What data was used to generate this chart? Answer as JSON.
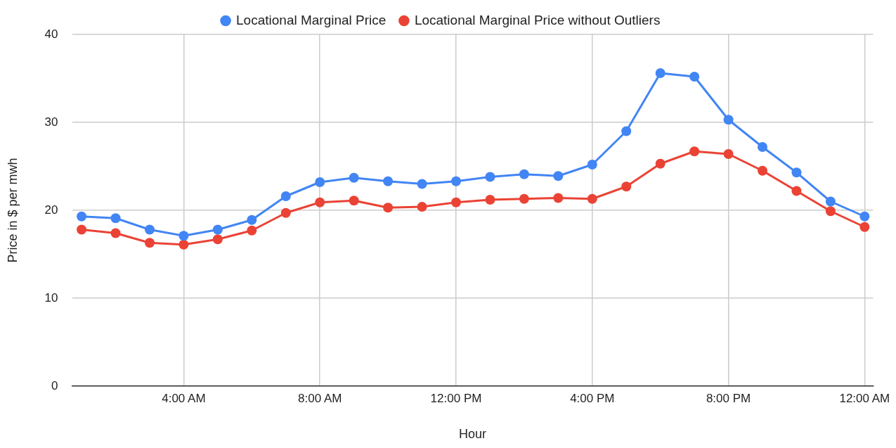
{
  "chart_data": {
    "type": "line",
    "xlabel": "Hour",
    "ylabel": "Price in $ per mwh",
    "x": [
      1,
      2,
      3,
      4,
      5,
      6,
      7,
      8,
      9,
      10,
      11,
      12,
      13,
      14,
      15,
      16,
      17,
      18,
      19,
      20,
      21,
      22,
      23,
      24
    ],
    "series": [
      {
        "name": "Locational Marginal Price",
        "color": "#4285f4",
        "values": [
          19.3,
          19.1,
          17.8,
          17.1,
          17.8,
          18.9,
          21.6,
          23.2,
          23.7,
          23.3,
          23.0,
          23.3,
          23.8,
          24.1,
          23.9,
          25.2,
          29.0,
          35.6,
          35.2,
          30.3,
          27.2,
          24.3,
          21.0,
          19.3
        ]
      },
      {
        "name": "Locational Marginal Price without Outliers",
        "color": "#ea4335",
        "values": [
          17.8,
          17.4,
          16.3,
          16.1,
          16.7,
          17.7,
          19.7,
          20.9,
          21.1,
          20.3,
          20.4,
          20.9,
          21.2,
          21.3,
          21.4,
          21.3,
          22.7,
          25.3,
          26.7,
          26.4,
          24.5,
          22.2,
          19.9,
          18.1
        ]
      }
    ],
    "xlim": [
      0.72,
      24.25
    ],
    "xticks": [
      {
        "value": 4,
        "label": "4:00 AM"
      },
      {
        "value": 8,
        "label": "8:00 AM"
      },
      {
        "value": 12,
        "label": "12:00 PM"
      },
      {
        "value": 16,
        "label": "4:00 PM"
      },
      {
        "value": 20,
        "label": "8:00 PM"
      },
      {
        "value": 24,
        "label": "12:00 AM"
      }
    ],
    "ylim": [
      0,
      40
    ],
    "yticks": [
      0,
      10,
      20,
      30,
      40
    ],
    "grid": true,
    "legend": "top",
    "marker": "circle",
    "line_style": "solid"
  }
}
